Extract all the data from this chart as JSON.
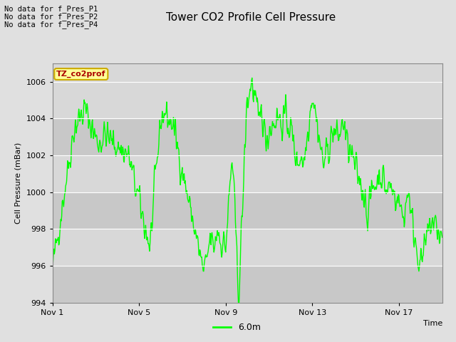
{
  "title": "Tower CO2 Profile Cell Pressure",
  "xlabel": "Time",
  "ylabel": "Cell Pressure (mBar)",
  "ylim": [
    994,
    1007
  ],
  "yticks": [
    994,
    996,
    998,
    1000,
    1002,
    1004,
    1006
  ],
  "xtick_labels": [
    "Nov 1",
    "Nov 5",
    "Nov 9",
    "Nov 13",
    "Nov 17"
  ],
  "line_color": "#00FF00",
  "line_width": 1.0,
  "bg_color": "#E0E0E0",
  "plot_bg_light": "#D8D8D8",
  "plot_bg_dark": "#C8C8C8",
  "legend_label": "6.0m",
  "annotations": [
    "No data for f_Pres_P1",
    "No data for f_Pres_P2",
    "No data for f_Pres_P4"
  ],
  "tooltip_label": "TZ_co2prof",
  "tooltip_bg": "#FFFF99",
  "tooltip_border": "#CCAA00",
  "tooltip_text_color": "#AA0000",
  "n_points": 800,
  "seed": 42
}
